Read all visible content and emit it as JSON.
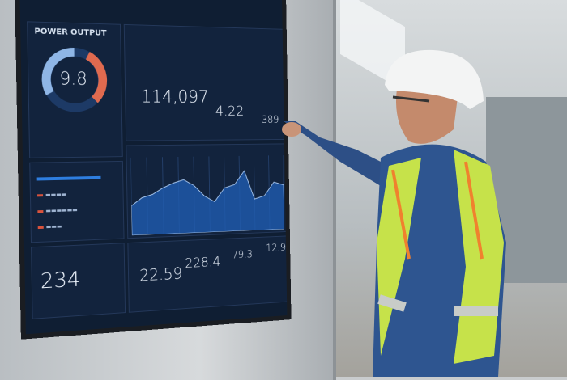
{
  "dashboard": {
    "title": "POWER OUTPUT",
    "gauge_value": "9.8",
    "colors": {
      "background": "#0f1e33",
      "accent_blue": "#2e7ee0",
      "gauge_light": "#8fb6e6",
      "gauge_red": "#e06a4f"
    },
    "metrics": {
      "top_center": "114,097",
      "top_right": "4.22",
      "top_far_right": "389",
      "bottom_left": "234",
      "bottom_1": "22.59",
      "bottom_2": "228.4",
      "bottom_3": "79.3",
      "bottom_4": "12.9"
    },
    "chart": {
      "type": "area",
      "values": [
        38,
        48,
        52,
        60,
        66,
        70,
        62,
        48,
        40,
        58,
        62,
        80,
        42,
        46,
        64,
        60
      ]
    }
  }
}
